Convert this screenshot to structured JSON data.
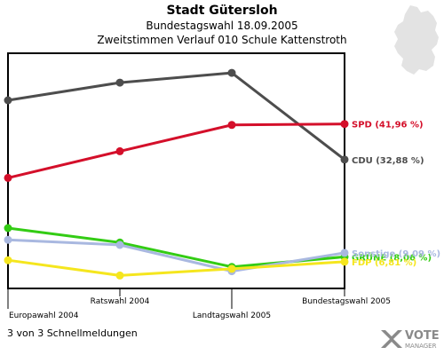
{
  "header": {
    "title": "Stadt Gütersloh",
    "subtitle": "Bundestagswahl 18.09.2005",
    "subtitle2": "Zweitstimmen Verlauf 010 Schule Kattenstroth"
  },
  "footer": {
    "status": "3 von 3 Schnellmeldungen"
  },
  "logo": {
    "word": "VOTE",
    "word2": "MANAGER"
  },
  "chart_data": {
    "type": "line",
    "categories": [
      "Europawahl 2004",
      "Ratswahl 2004",
      "Landtagswahl 2005",
      "Bundestagswahl 2005"
    ],
    "ylim": [
      0,
      60
    ],
    "grid": false,
    "series": [
      {
        "name": "CDU",
        "label": "CDU (32,88 %)",
        "color": "#4d4d4d",
        "values": [
          48.0,
          52.5,
          55.0,
          32.88
        ]
      },
      {
        "name": "SPD",
        "label": "SPD (41,96 %)",
        "color": "#d40f2a",
        "values": [
          28.2,
          35.0,
          41.7,
          41.96
        ]
      },
      {
        "name": "GRÜNE",
        "label": "GRÜNE (8,06 %)",
        "color": "#33cc14",
        "values": [
          15.4,
          11.7,
          5.5,
          8.06
        ]
      },
      {
        "name": "Sonstige",
        "label": "Sonstige (9,09 %)",
        "color": "#a9b8e0",
        "values": [
          12.4,
          11.1,
          4.4,
          9.09
        ]
      },
      {
        "name": "FDP",
        "label": "FDP (6,81 %)",
        "color": "#f5e61e",
        "values": [
          7.2,
          3.3,
          5.0,
          6.81
        ]
      }
    ]
  }
}
